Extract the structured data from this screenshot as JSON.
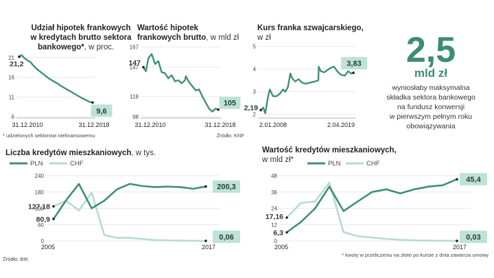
{
  "colors": {
    "green": "#3f8f76",
    "lightgreen": "#b6dccd",
    "badge": "#bfe3d3"
  },
  "panel1": {
    "title_b": [
      "Udział hipotek frankowych",
      "w kredytach brutto sektora",
      "bankowego*"
    ],
    "title_n": ", w proc.",
    "footnote": "* udzielonych sektorowi niefinansowemu"
  },
  "panel2": {
    "title_b": [
      "Wartość hipotek",
      "frankowych brutto"
    ],
    "title_n": ", w mld zł",
    "source": "Źródło: KNF"
  },
  "panel3": {
    "title_b": [
      "Kurs franka szwajcarskiego,"
    ],
    "title_n": "w zł"
  },
  "side": {
    "big_value": "2,5",
    "big_unit": "mld zł",
    "text": [
      "wyniosłaby maksymalna",
      "składka sektora bankowego",
      "na fundusz konwersji",
      "w pierwszym pełnym roku",
      "obowiązywania"
    ]
  },
  "panel4": {
    "title_b": "Liczba kredytów mieszkaniowych",
    "title_n": ", w tys.",
    "legend": [
      "PLN",
      "CHF"
    ],
    "source": "Źródło: BIK"
  },
  "panel5": {
    "title_b": "Wartość kredytów mieszkaniowych,",
    "title_n": "w mld zł*",
    "legend": [
      "PLN",
      "CHF"
    ],
    "footnote": "* kwoty w przeliczeniu na złote po kursie z dnia zawarcia umowy"
  },
  "chart_data": [
    {
      "type": "line",
      "title": "Udział hipotek frankowych w kredytach brutto sektora bankowego*, w proc.",
      "x_ticks": [
        "31.12.2010",
        "31.12.2018"
      ],
      "y_ticks": [
        6,
        11,
        16,
        21
      ],
      "ylim": [
        6,
        22
      ],
      "series": [
        {
          "x": [
            2010.0,
            2010.3,
            2010.6,
            2011.0,
            2011.4,
            2011.8,
            2012.2,
            2012.7,
            2013.2,
            2013.7,
            2014.2,
            2014.7,
            2015.2,
            2015.7,
            2016.2,
            2016.7,
            2017.2,
            2017.7,
            2018.2,
            2018.6,
            2019.0
          ],
          "values": [
            21.2,
            21.6,
            20.9,
            20.3,
            19.8,
            18.8,
            18.0,
            17.2,
            16.4,
            15.6,
            15.0,
            14.4,
            13.7,
            13.1,
            12.5,
            11.9,
            11.3,
            10.7,
            10.2,
            9.8,
            9.6
          ]
        }
      ],
      "labels": {
        "start": "21,2",
        "end": "9,6"
      }
    },
    {
      "type": "line",
      "title": "Wartość hipotek frankowych brutto, w mld zł",
      "x_ticks": [
        "31.12.2010",
        "31.12.2018"
      ],
      "y_ticks": [
        98,
        118,
        147,
        167
      ],
      "ylim": [
        98,
        170
      ],
      "series": [
        {
          "x": [
            2010.0,
            2010.3,
            2010.6,
            2011.0,
            2011.4,
            2011.8,
            2012.2,
            2012.6,
            2013.0,
            2013.4,
            2013.8,
            2014.2,
            2014.6,
            2015.0,
            2015.1,
            2015.5,
            2015.9,
            2016.3,
            2016.7,
            2017.1,
            2017.5,
            2017.9,
            2018.3,
            2018.7,
            2019.0
          ],
          "values": [
            147,
            143,
            156,
            160,
            150,
            153,
            142,
            141,
            136,
            139,
            133,
            134,
            131,
            134,
            138,
            132,
            128,
            124,
            125,
            118,
            112,
            106,
            103,
            106,
            105
          ]
        }
      ],
      "labels": {
        "start": "147",
        "end": "105"
      }
    },
    {
      "type": "line",
      "title": "Kurs franka szwajcarskiego, w zł",
      "x_ticks": [
        "2.01.2008",
        "2.04.2019"
      ],
      "y_ticks": [
        2,
        3,
        4,
        5
      ],
      "ylim": [
        1.9,
        5.1
      ],
      "series": [
        {
          "x": [
            2008.0,
            2008.3,
            2008.55,
            2008.9,
            2009.1,
            2009.5,
            2009.9,
            2010.3,
            2010.7,
            2011.0,
            2011.3,
            2011.6,
            2011.8,
            2012.2,
            2012.6,
            2013.0,
            2013.5,
            2014.0,
            2014.6,
            2015.0,
            2015.04,
            2015.3,
            2015.7,
            2016.1,
            2016.5,
            2016.9,
            2017.3,
            2017.7,
            2018.2,
            2018.6,
            2019.0,
            2019.25
          ],
          "values": [
            2.19,
            2.3,
            2.05,
            2.8,
            3.1,
            2.8,
            2.8,
            2.9,
            3.1,
            3.0,
            3.2,
            3.8,
            3.6,
            3.45,
            3.55,
            3.4,
            3.35,
            3.4,
            3.45,
            3.5,
            4.1,
            3.9,
            3.85,
            3.95,
            4.05,
            4.1,
            3.9,
            3.75,
            3.7,
            3.9,
            3.8,
            3.83
          ]
        }
      ],
      "labels": {
        "start": "2,19",
        "end": "3,83"
      }
    },
    {
      "type": "line",
      "title": "Liczba kredytów mieszkaniowych, w tys.",
      "categories": [
        "2005",
        "2006",
        "2007",
        "2008",
        "2009",
        "2010",
        "2011",
        "2012",
        "2013",
        "2014",
        "2015",
        "2016",
        "2017"
      ],
      "x_ticks": [
        "2005",
        "2017"
      ],
      "y_ticks": [
        0,
        60,
        120,
        180,
        240
      ],
      "ylim": [
        0,
        240
      ],
      "series": [
        {
          "name": "PLN",
          "values": [
            80.9,
            150,
            210,
            120,
            148,
            190,
            210,
            202,
            198,
            200,
            198,
            192,
            200.3
          ]
        },
        {
          "name": "CHF",
          "values": [
            127.18,
            148,
            112,
            178,
            22,
            11,
            12,
            7,
            3,
            2,
            1,
            0.5,
            0.06
          ]
        }
      ],
      "labels": {
        "PLN_start": "80,9",
        "CHF_start": "127,18",
        "PLN_end": "200,3",
        "CHF_end": "0,06"
      }
    },
    {
      "type": "line",
      "title": "Wartość kredytów mieszkaniowych, w mld zł*",
      "categories": [
        "2005",
        "2006",
        "2007",
        "2008",
        "2009",
        "2010",
        "2011",
        "2012",
        "2013",
        "2014",
        "2015",
        "2016",
        "2017"
      ],
      "x_ticks": [
        "2005",
        "2017"
      ],
      "y_ticks": [
        0,
        12,
        24,
        36,
        48
      ],
      "ylim": [
        0,
        48
      ],
      "series": [
        {
          "name": "PLN",
          "values": [
            6.3,
            14,
            24,
            40,
            22,
            29,
            36,
            38,
            35,
            38,
            40,
            41,
            45.4
          ]
        },
        {
          "name": "CHF",
          "values": [
            17.16,
            28,
            29,
            43,
            6.5,
            3.5,
            2.5,
            1.5,
            0.8,
            0.4,
            0.2,
            0.1,
            0.03
          ]
        }
      ],
      "labels": {
        "PLN_start": "6,3",
        "CHF_start": "17,16",
        "PLN_end": "45,4",
        "CHF_end": "0,03"
      }
    }
  ]
}
